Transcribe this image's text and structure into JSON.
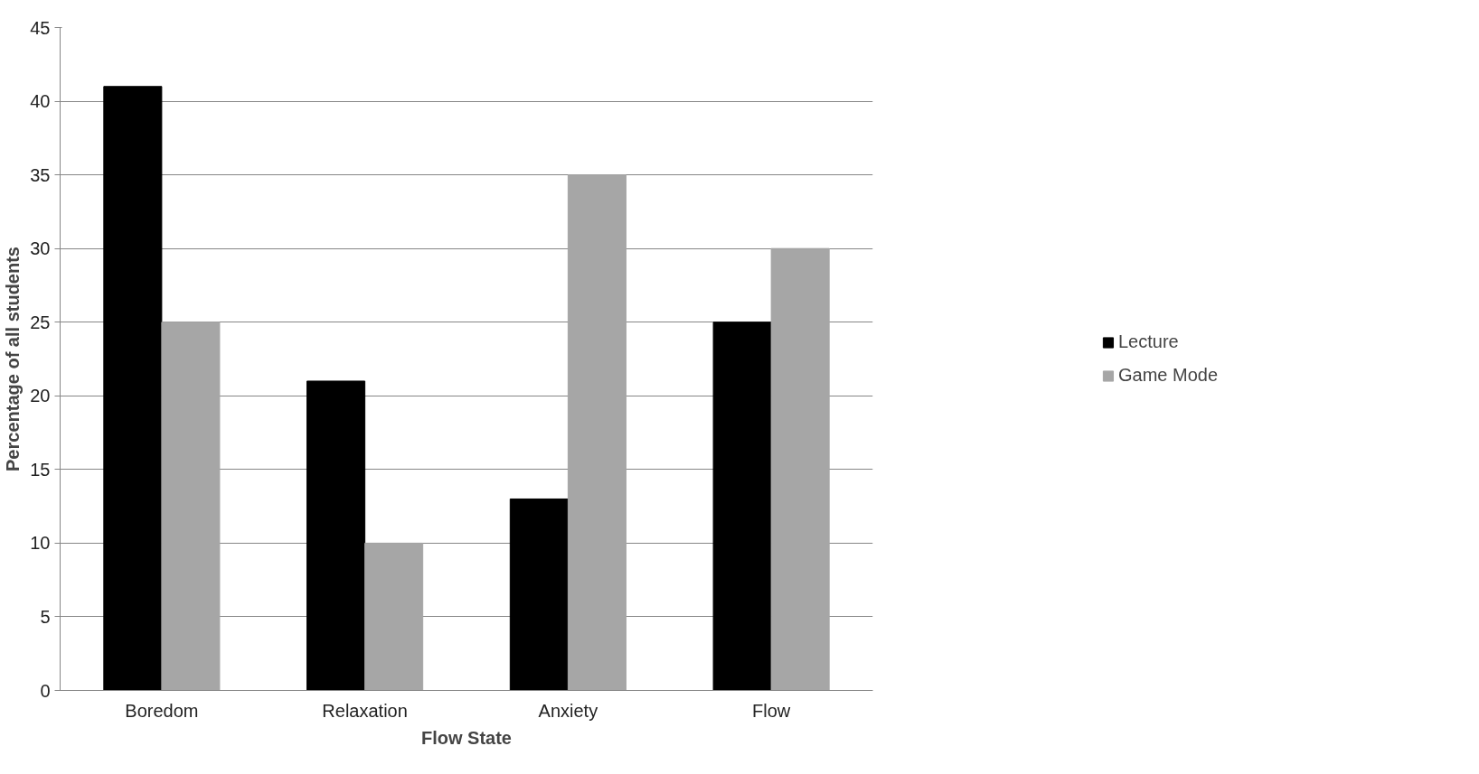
{
  "chart_data": {
    "type": "bar",
    "xlabel": "Flow State",
    "ylabel": "Percentage of all students",
    "categories": [
      "Boredom",
      "Relaxation",
      "Anxiety",
      "Flow"
    ],
    "series": [
      {
        "name": "Lecture",
        "color": "#000000",
        "values": [
          41,
          21,
          13,
          25
        ]
      },
      {
        "name": "Game Mode",
        "color": "#a6a6a6",
        "values": [
          25,
          10,
          35,
          30
        ]
      }
    ],
    "ylim": [
      0,
      45
    ],
    "yticks": [
      0,
      5,
      10,
      15,
      20,
      25,
      30,
      35,
      40,
      45
    ],
    "grid": "y",
    "legend": "right"
  }
}
